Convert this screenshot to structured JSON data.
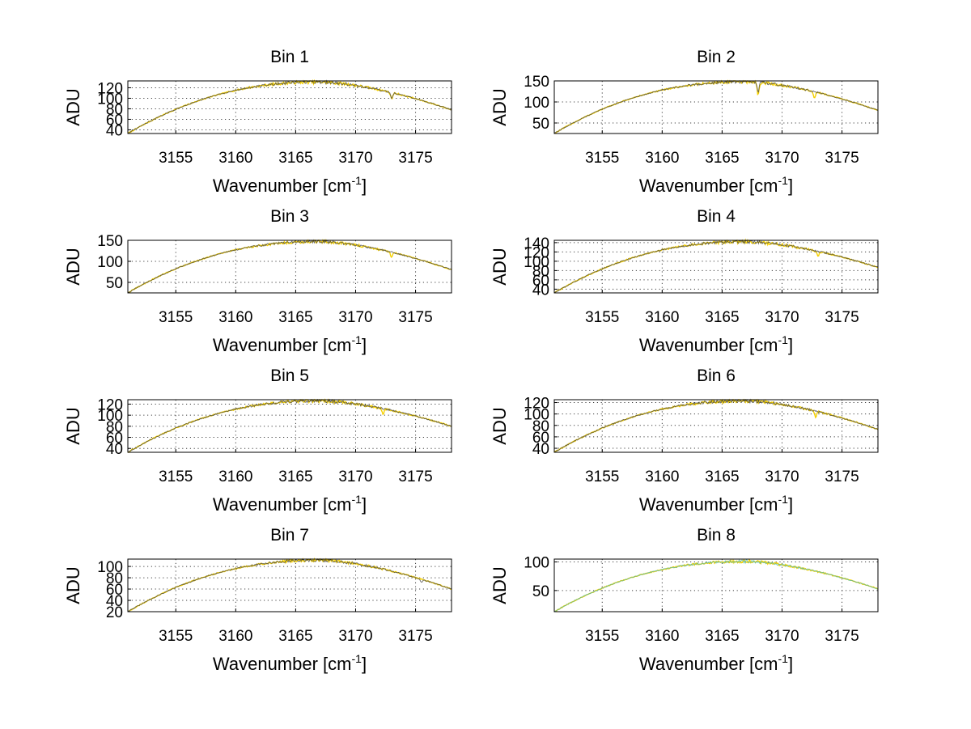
{
  "figure": {
    "background": "#ffffff"
  },
  "chart_data": [
    {
      "type": "line",
      "title": "Bin 1",
      "xlabel": "Wavenumber [cm",
      "xlabel_sup": "-1",
      "xlabel_end": "]",
      "ylabel": "ADU",
      "xlim": [
        3151,
        3178
      ],
      "ylim": [
        33,
        133
      ],
      "xticks": [
        3155,
        3160,
        3165,
        3170,
        3175
      ],
      "yticks": [
        40,
        60,
        80,
        100,
        120
      ],
      "ytick_labels": [
        "40",
        "60",
        "80",
        "100",
        "120"
      ],
      "grid": true,
      "series": [
        {
          "color": "#f5d000",
          "peak": 131,
          "start": 33,
          "end": 78,
          "dips": [
            [
              3173.0,
              12
            ]
          ]
        },
        {
          "color": "#444444",
          "peak": 131,
          "start": 33,
          "end": 78,
          "dips": [
            [
              3173.0,
              10
            ]
          ]
        }
      ]
    },
    {
      "type": "line",
      "title": "Bin 2",
      "xlabel": "Wavenumber [cm",
      "xlabel_sup": "-1",
      "xlabel_end": "]",
      "ylabel": "ADU",
      "xlim": [
        3151,
        3178
      ],
      "ylim": [
        25,
        150
      ],
      "xticks": [
        3155,
        3160,
        3165,
        3170,
        3175
      ],
      "yticks": [
        50,
        100,
        150
      ],
      "ytick_labels": [
        "50",
        "100",
        "150"
      ],
      "grid": true,
      "series": [
        {
          "color": "#f5d000",
          "peak": 148,
          "start": 25,
          "end": 80,
          "dips": [
            [
              3168.0,
              30
            ],
            [
              3172.7,
              14
            ]
          ]
        },
        {
          "color": "#444444",
          "peak": 148,
          "start": 25,
          "end": 80,
          "dips": [
            [
              3168.0,
              24
            ]
          ]
        }
      ]
    },
    {
      "type": "line",
      "title": "Bin 3",
      "xlabel": "Wavenumber [cm",
      "xlabel_sup": "-1",
      "xlabel_end": "]",
      "ylabel": "ADU",
      "xlim": [
        3151,
        3178
      ],
      "ylim": [
        25,
        150
      ],
      "xticks": [
        3155,
        3160,
        3165,
        3170,
        3175
      ],
      "yticks": [
        50,
        100,
        150
      ],
      "ytick_labels": [
        "50",
        "100",
        "150"
      ],
      "grid": true,
      "series": [
        {
          "color": "#f5d000",
          "peak": 147,
          "start": 25,
          "end": 80,
          "dips": [
            [
              3173.0,
              12
            ]
          ]
        },
        {
          "color": "#444444",
          "peak": 147,
          "start": 25,
          "end": 80,
          "dips": []
        }
      ]
    },
    {
      "type": "line",
      "title": "Bin 4",
      "xlabel": "Wavenumber [cm",
      "xlabel_sup": "-1",
      "xlabel_end": "]",
      "ylabel": "ADU",
      "xlim": [
        3151,
        3178
      ],
      "ylim": [
        32,
        145
      ],
      "xticks": [
        3155,
        3160,
        3165,
        3170,
        3175
      ],
      "yticks": [
        40,
        60,
        80,
        100,
        120,
        140
      ],
      "ytick_labels": [
        "40",
        "60",
        "80",
        "100",
        "120",
        "140"
      ],
      "grid": true,
      "series": [
        {
          "color": "#f5d000",
          "peak": 142,
          "start": 32,
          "end": 87,
          "dips": [
            [
              3173.0,
              10
            ]
          ]
        },
        {
          "color": "#444444",
          "peak": 142,
          "start": 32,
          "end": 87,
          "dips": []
        }
      ]
    },
    {
      "type": "line",
      "title": "Bin 5",
      "xlabel": "Wavenumber [cm",
      "xlabel_sup": "-1",
      "xlabel_end": "]",
      "ylabel": "ADU",
      "xlim": [
        3151,
        3178
      ],
      "ylim": [
        33,
        128
      ],
      "xticks": [
        3155,
        3160,
        3165,
        3170,
        3175
      ],
      "yticks": [
        40,
        60,
        80,
        100,
        120
      ],
      "ytick_labels": [
        "40",
        "60",
        "80",
        "100",
        "120"
      ],
      "grid": true,
      "series": [
        {
          "color": "#f5d000",
          "peak": 126,
          "start": 33,
          "end": 80,
          "dips": [
            [
              3172.3,
              9
            ]
          ]
        },
        {
          "color": "#444444",
          "peak": 126,
          "start": 33,
          "end": 80,
          "dips": []
        }
      ]
    },
    {
      "type": "line",
      "title": "Bin 6",
      "xlabel": "Wavenumber [cm",
      "xlabel_sup": "-1",
      "xlabel_end": "]",
      "ylabel": "ADU",
      "xlim": [
        3151,
        3178
      ],
      "ylim": [
        33,
        125
      ],
      "xticks": [
        3155,
        3160,
        3165,
        3170,
        3175
      ],
      "yticks": [
        40,
        60,
        80,
        100,
        120
      ],
      "ytick_labels": [
        "40",
        "60",
        "80",
        "100",
        "120"
      ],
      "grid": true,
      "series": [
        {
          "color": "#f5d000",
          "peak": 123,
          "start": 33,
          "end": 73,
          "dips": [
            [
              3172.8,
              10
            ]
          ]
        },
        {
          "color": "#444444",
          "peak": 123,
          "start": 33,
          "end": 73,
          "dips": []
        }
      ]
    },
    {
      "type": "line",
      "title": "Bin 7",
      "xlabel": "Wavenumber [cm",
      "xlabel_sup": "-1",
      "xlabel_end": "]",
      "ylabel": "ADU",
      "xlim": [
        3151,
        3178
      ],
      "ylim": [
        20,
        113
      ],
      "xticks": [
        3155,
        3160,
        3165,
        3170,
        3175
      ],
      "yticks": [
        20,
        40,
        60,
        80,
        100
      ],
      "ytick_labels": [
        "20",
        "40",
        "60",
        "80",
        "100"
      ],
      "grid": true,
      "series": [
        {
          "color": "#f5d000",
          "peak": 111,
          "start": 20,
          "end": 60,
          "dips": []
        },
        {
          "color": "#444444",
          "peak": 111,
          "start": 20,
          "end": 60,
          "dips": [
            [
              3175.5,
              6
            ]
          ]
        }
      ]
    },
    {
      "type": "line",
      "title": "Bin 8",
      "xlabel": "Wavenumber [cm",
      "xlabel_sup": "-1",
      "xlabel_end": "]",
      "ylabel": "ADU",
      "xlim": [
        3151,
        3178
      ],
      "ylim": [
        13,
        105
      ],
      "xticks": [
        3155,
        3160,
        3165,
        3170,
        3175
      ],
      "yticks": [
        50,
        100
      ],
      "ytick_labels": [
        "50",
        "100"
      ],
      "grid": true,
      "series": [
        {
          "color": "#f5d000",
          "peak": 101,
          "start": 13,
          "end": 53,
          "dips": []
        },
        {
          "color": "#4fb8a8",
          "peak": 101,
          "start": 13,
          "end": 53,
          "dips": []
        }
      ]
    }
  ]
}
